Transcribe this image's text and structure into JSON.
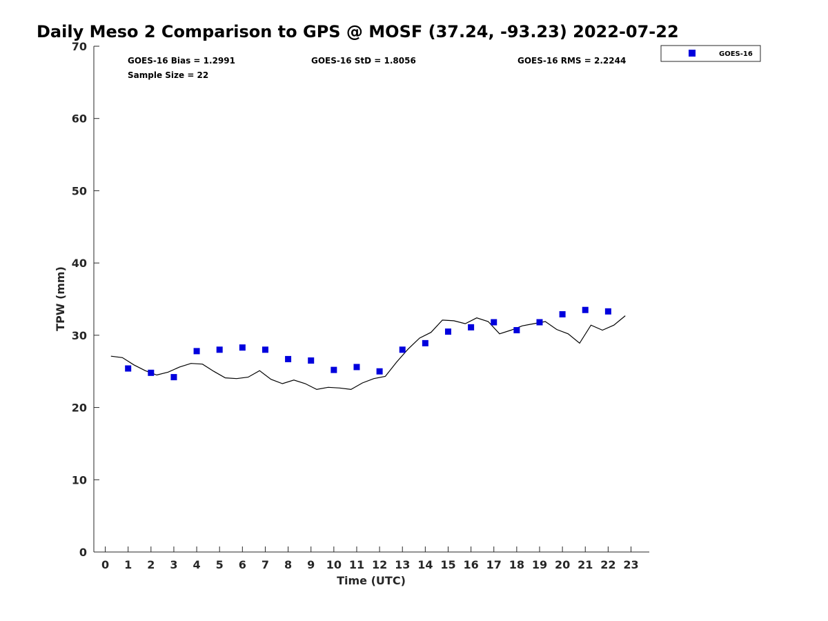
{
  "chart_data": {
    "type": "scatter",
    "title": "Daily Meso 2 Comparison to GPS @ MOSF (37.24, -93.23) 2022-07-22",
    "xlabel": "Time (UTC)",
    "ylabel": "TPW (mm)",
    "xlim": [
      -0.5,
      23.8
    ],
    "ylim": [
      0,
      70
    ],
    "xticks": [
      0,
      1,
      2,
      3,
      4,
      5,
      6,
      7,
      8,
      9,
      10,
      11,
      12,
      13,
      14,
      15,
      16,
      17,
      18,
      19,
      20,
      21,
      22,
      23
    ],
    "yticks": [
      0,
      10,
      20,
      30,
      40,
      50,
      60,
      70
    ],
    "grid": false,
    "legend_position": "outside top-right",
    "stats": {
      "bias": "GOES-16 Bias = 1.2991",
      "std": "GOES-16 StD = 1.8056",
      "rms": "GOES-16 RMS = 2.2244",
      "sample": "Sample Size = 22"
    },
    "series": [
      {
        "name": "GOES-16",
        "type": "scatter",
        "marker": "square",
        "color": "#0000dd",
        "x": [
          1,
          2,
          3,
          4,
          5,
          6,
          7,
          8,
          9,
          10,
          11,
          12,
          13,
          14,
          15,
          16,
          17,
          18,
          19,
          20,
          21,
          22
        ],
        "y": [
          25.4,
          24.8,
          24.2,
          27.8,
          28.0,
          28.3,
          28.0,
          26.7,
          26.5,
          25.2,
          25.6,
          25.0,
          28.0,
          28.9,
          30.5,
          31.1,
          31.8,
          30.7,
          31.8,
          32.9,
          33.5,
          33.3
        ]
      },
      {
        "type": "line",
        "color": "#000000",
        "x": [
          0.25,
          0.75,
          1.25,
          1.75,
          2.25,
          2.75,
          3.25,
          3.75,
          4.25,
          4.75,
          5.25,
          5.75,
          6.25,
          6.75,
          7.25,
          7.75,
          8.25,
          8.75,
          9.25,
          9.75,
          10.25,
          10.75,
          11.25,
          11.75,
          12.25,
          12.75,
          13.25,
          13.75,
          14.25,
          14.75,
          15.25,
          15.75,
          16.25,
          16.75,
          17.25,
          17.75,
          18.25,
          18.75,
          19.25,
          19.75,
          20.25,
          20.75,
          21.25,
          21.75,
          22.25,
          22.75
        ],
        "y": [
          27.1,
          26.9,
          25.9,
          25.1,
          24.5,
          24.9,
          25.6,
          26.1,
          26.0,
          25.0,
          24.1,
          24.0,
          24.2,
          25.1,
          23.9,
          23.3,
          23.8,
          23.3,
          22.5,
          22.8,
          22.7,
          22.5,
          23.4,
          24.0,
          24.3,
          26.3,
          28.1,
          29.6,
          30.4,
          32.1,
          32.0,
          31.6,
          32.4,
          31.9,
          30.2,
          30.7,
          31.3,
          31.6,
          31.9,
          30.8,
          30.2,
          28.9,
          31.4,
          30.7,
          31.4,
          32.7
        ]
      }
    ]
  }
}
